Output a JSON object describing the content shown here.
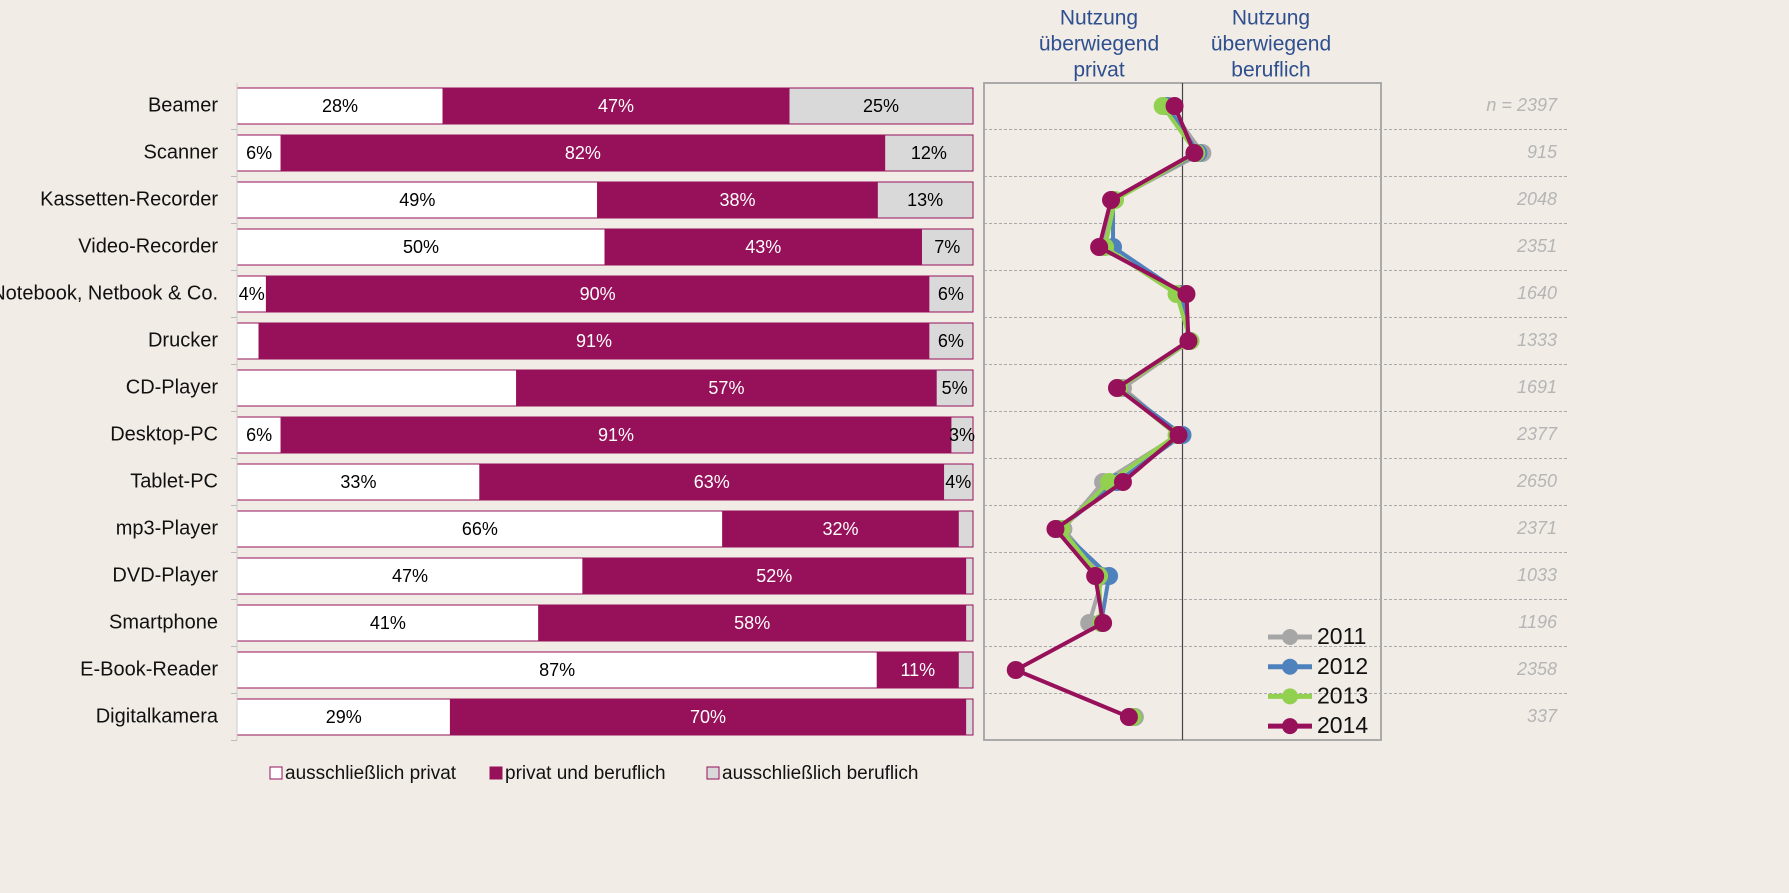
{
  "chart_data": [
    {
      "type": "bar",
      "orientation": "horizontal",
      "categories": [
        "Beamer",
        "Scanner",
        "Kassetten-Recorder",
        "Video-Recorder",
        "Notebook, Netbook & Co.",
        "Drucker",
        "CD-Player",
        "Desktop-PC",
        "Tablet-PC",
        "mp3-Player",
        "DVD-Player",
        "Smartphone",
        "E-Book-Reader",
        "Digitalkamera"
      ],
      "xlim": [
        0,
        100
      ],
      "legend": "bottom",
      "series": [
        {
          "name": "ausschließlich privat",
          "color": "#ffffff",
          "text_color": "#000000",
          "values": [
            28,
            6,
            49,
            50,
            4,
            3,
            38,
            6,
            33,
            66,
            47,
            41,
            87,
            29
          ],
          "value_labels": [
            "28%",
            "6%",
            "49%",
            "50%",
            "4%",
            null,
            null,
            "6%",
            "33%",
            "66%",
            "47%",
            "41%",
            "87%",
            "29%"
          ]
        },
        {
          "name": "privat und beruflich",
          "color": "#96105a",
          "text_color": "#ffffff",
          "values": [
            47,
            82,
            38,
            43,
            90,
            91,
            57,
            91,
            63,
            32,
            52,
            58,
            11,
            70
          ],
          "value_labels": [
            "47%",
            "82%",
            "38%",
            "43%",
            "90%",
            "91%",
            "57%",
            "91%",
            "63%",
            "32%",
            "52%",
            "58%",
            "11%",
            "70%"
          ]
        },
        {
          "name": "ausschließlich beruflich",
          "color": "#d9d9d9",
          "text_color": "#000000",
          "values": [
            25,
            12,
            13,
            7,
            6,
            6,
            5,
            3,
            4,
            2,
            1,
            1,
            2,
            1
          ],
          "value_labels": [
            "25%",
            "12%",
            "13%",
            "7%",
            "6%",
            "6%",
            "5%",
            "3%",
            "4%",
            null,
            null,
            null,
            null,
            null
          ]
        }
      ]
    },
    {
      "type": "line",
      "orientation": "horizontal",
      "headers": [
        [
          "Nutzung",
          "überwiegend",
          "privat"
        ],
        [
          "Nutzung",
          "überwiegend",
          "beruflich"
        ]
      ],
      "xlim": [
        -1,
        1
      ],
      "xticks": [
        0
      ],
      "legend": "lower right",
      "n_labels": [
        "n = 2397",
        "915",
        "2048",
        "2351",
        "1640",
        "1333",
        "1691",
        "2377",
        "2650",
        "2371",
        "1033",
        "1196",
        "2358",
        "337"
      ],
      "series": [
        {
          "name": "2011",
          "color": "#a6a6a6",
          "values": [
            -0.07,
            0.1,
            -0.35,
            -0.4,
            -0.01,
            0.04,
            -0.3,
            -0.02,
            -0.4,
            -0.6,
            -0.4,
            -0.47,
            null,
            -0.24
          ]
        },
        {
          "name": "2012",
          "color": "#4f81bd",
          "values": [
            -0.08,
            0.08,
            -0.35,
            -0.35,
            0.0,
            0.03,
            -0.32,
            0.0,
            -0.33,
            -0.62,
            -0.37,
            -0.41,
            null,
            -0.25
          ]
        },
        {
          "name": "2013",
          "color": "#92d050",
          "values": [
            -0.1,
            0.07,
            -0.34,
            -0.39,
            -0.03,
            0.04,
            -0.32,
            -0.03,
            -0.37,
            -0.61,
            -0.42,
            -0.41,
            null,
            -0.25
          ]
        },
        {
          "name": "2014",
          "color": "#96105a",
          "values": [
            -0.04,
            0.06,
            -0.36,
            -0.42,
            0.02,
            0.03,
            -0.33,
            -0.02,
            -0.3,
            -0.64,
            -0.44,
            -0.4,
            -0.84,
            -0.27
          ]
        }
      ]
    }
  ]
}
